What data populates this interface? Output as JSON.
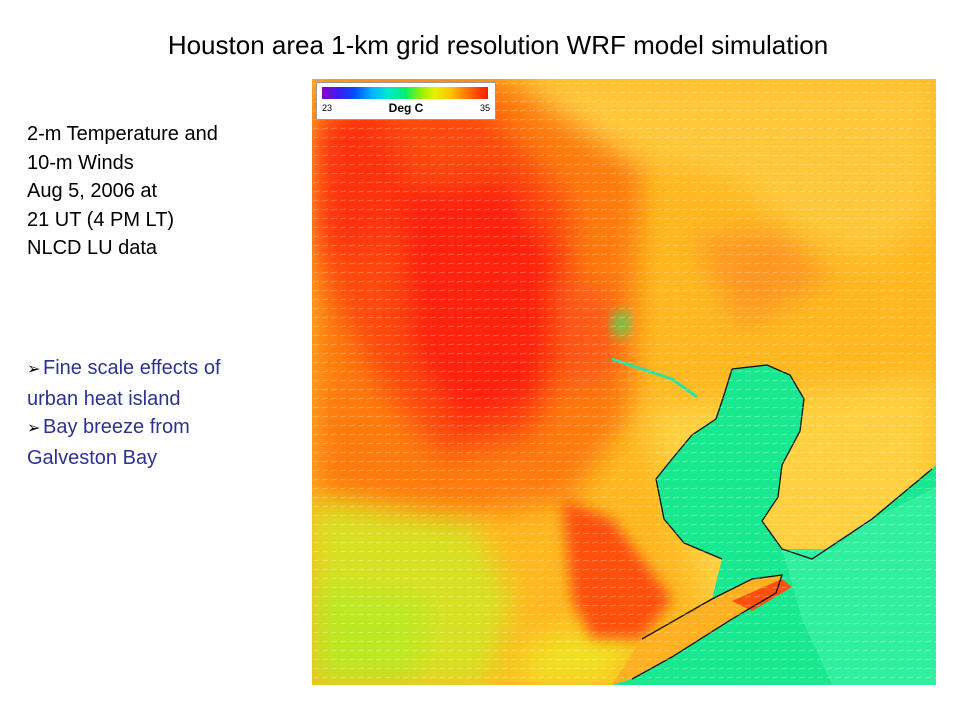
{
  "title": "Houston area 1-km grid resolution WRF model simulation",
  "info_lines": [
    "2-m Temperature and",
    "10-m Winds",
    "Aug 5, 2006 at",
    "21 UT (4 PM LT)",
    "NLCD LU data"
  ],
  "bullets": [
    {
      "line1": "Fine scale effects of",
      "line2": "urban heat island"
    },
    {
      "line1": "Bay breeze from",
      "line2": "Galveston Bay"
    }
  ],
  "colorbar": {
    "min": "23",
    "max": "35",
    "unit": "Deg C"
  },
  "colors": {
    "hot": "#ff2a10",
    "warm": "#ff7a10",
    "mild": "#ffb820",
    "cool": "#c8f000",
    "bay": "#10e878",
    "bullet_text": "#2e3192"
  }
}
